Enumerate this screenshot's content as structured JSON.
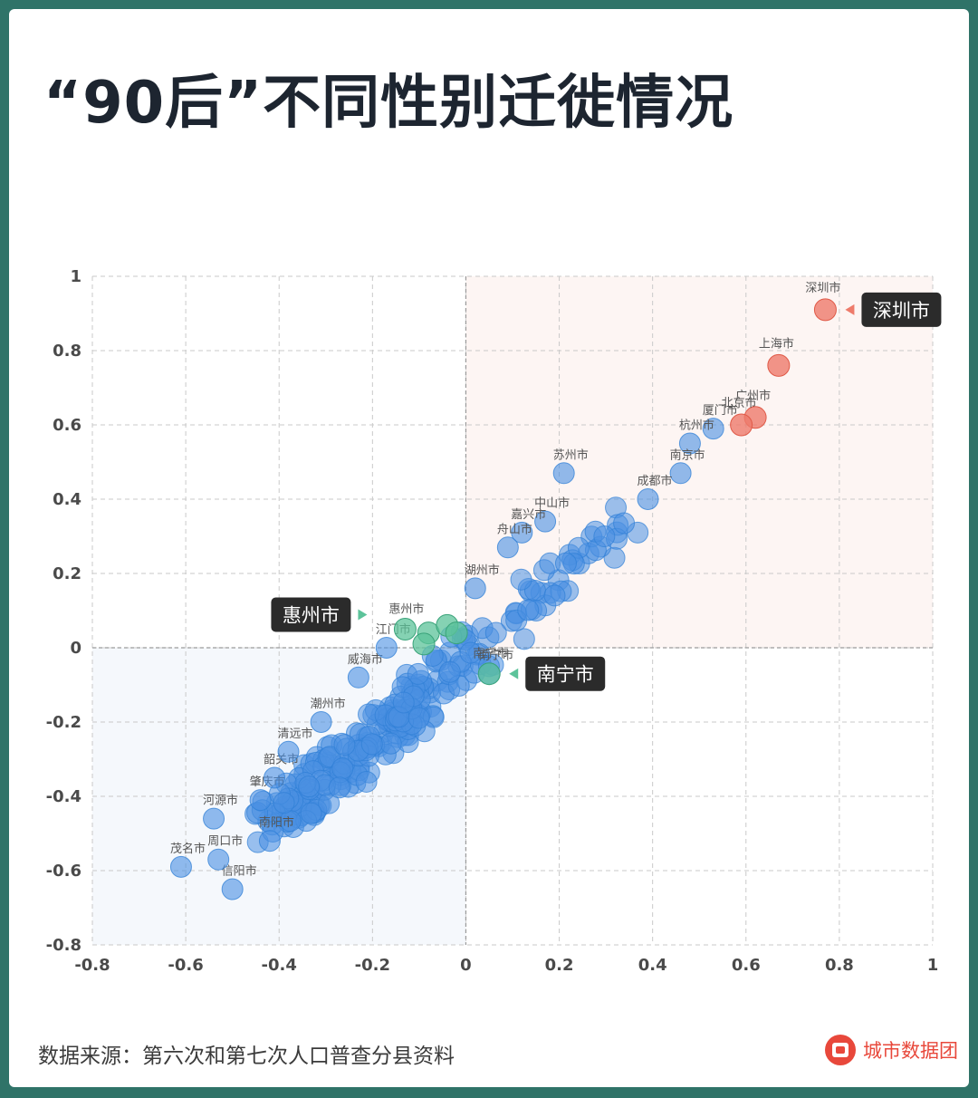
{
  "title": "“90后”不同性别迁徙情况",
  "footer": {
    "source": "数据来源：第六次和第七次人口普查分县资料",
    "brand": "城市数据团"
  },
  "colors": {
    "blue": "#4a90e2",
    "red": "#ee7b6b",
    "green": "#5cc39a",
    "callout": "#2b2b2b",
    "quadrant_top_right": "#fdf5f3",
    "quadrant_bottom_left": "#f5f8fc",
    "brand": "#e8483b"
  },
  "chart_data": {
    "type": "scatter",
    "xlim": [
      -0.8,
      1
    ],
    "ylim": [
      -0.8,
      1
    ],
    "x_ticks": [
      "-0.8",
      "-0.6",
      "-0.4",
      "-0.2",
      "0",
      "0.2",
      "0.4",
      "0.6",
      "0.8",
      "1"
    ],
    "y_ticks": [
      "1",
      "0.8",
      "0.6",
      "0.4",
      "0.2",
      "0",
      "-0.2",
      "-0.4",
      "-0.6",
      "-0.8"
    ],
    "grid": true,
    "highlighted_red": [
      {
        "name": "深圳市",
        "x": 0.77,
        "y": 0.91
      },
      {
        "name": "上海市",
        "x": 0.67,
        "y": 0.76
      },
      {
        "name": "广州市",
        "x": 0.62,
        "y": 0.62
      },
      {
        "name": "北京市",
        "x": 0.59,
        "y": 0.6
      }
    ],
    "highlighted_green": [
      {
        "name": "南宁市",
        "x": 0.05,
        "y": -0.07
      },
      {
        "name": "惠州市",
        "x": -0.13,
        "y": 0.05
      },
      {
        "name": "",
        "x": -0.08,
        "y": 0.04
      },
      {
        "name": "",
        "x": -0.04,
        "y": 0.06
      },
      {
        "name": "",
        "x": -0.02,
        "y": 0.04
      },
      {
        "name": "",
        "x": -0.09,
        "y": 0.01
      }
    ],
    "labeled_blue": [
      {
        "name": "厦门市",
        "x": 0.53,
        "y": 0.59
      },
      {
        "name": "杭州市",
        "x": 0.48,
        "y": 0.55
      },
      {
        "name": "南京市",
        "x": 0.46,
        "y": 0.47
      },
      {
        "name": "成都市",
        "x": 0.39,
        "y": 0.4
      },
      {
        "name": "苏州市",
        "x": 0.21,
        "y": 0.47
      },
      {
        "name": "中山市",
        "x": 0.17,
        "y": 0.34
      },
      {
        "name": "嘉兴市",
        "x": 0.12,
        "y": 0.31
      },
      {
        "name": "舟山市",
        "x": 0.09,
        "y": 0.27
      },
      {
        "name": "湖州市",
        "x": 0.02,
        "y": 0.16
      },
      {
        "name": "南宁市",
        "x": 0.05,
        "y": -0.07
      },
      {
        "name": "河源市",
        "x": -0.54,
        "y": -0.46
      },
      {
        "name": "茂名市",
        "x": -0.61,
        "y": -0.59
      },
      {
        "name": "信阳市",
        "x": -0.5,
        "y": -0.65
      },
      {
        "name": "周口市",
        "x": -0.53,
        "y": -0.57
      },
      {
        "name": "南阳市",
        "x": -0.42,
        "y": -0.52
      },
      {
        "name": "肇庆市",
        "x": -0.44,
        "y": -0.41
      },
      {
        "name": "韶关市",
        "x": -0.41,
        "y": -0.35
      },
      {
        "name": "清远市",
        "x": -0.38,
        "y": -0.28
      },
      {
        "name": "潮州市",
        "x": -0.31,
        "y": -0.2
      },
      {
        "name": "威海市",
        "x": -0.23,
        "y": -0.08
      },
      {
        "name": "江门市",
        "x": -0.17,
        "y": 0.0
      }
    ],
    "callouts": [
      {
        "name": "深圳市",
        "color": "red"
      },
      {
        "name": "惠州市",
        "color": "green"
      },
      {
        "name": "南宁市",
        "color": "green"
      }
    ]
  }
}
